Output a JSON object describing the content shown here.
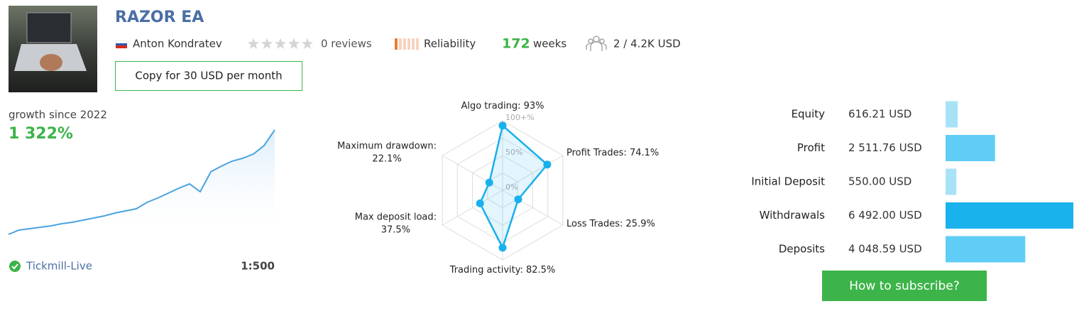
{
  "header": {
    "title": "RAZOR EA",
    "author": "Anton Kondratev",
    "reviews": "0 reviews",
    "reliability": "Reliability",
    "weeks": "172",
    "weeks_unit": "weeks",
    "subscribers": "2 / 4.2K USD",
    "copy_button": "Copy for 30 USD per month"
  },
  "growth": {
    "type": "line",
    "label": "growth since 2022",
    "total": "1 322%",
    "color": "#4aa3df",
    "values": [
      0,
      54,
      72,
      90,
      108,
      135,
      153,
      180,
      207,
      234,
      270,
      297,
      324,
      405,
      459,
      522,
      585,
      639,
      540,
      792,
      864,
      927,
      963,
      1017,
      1125,
      1322
    ],
    "broker": "Tickmill-Live",
    "leverage": "1:500"
  },
  "radar": {
    "type": "radar",
    "color": "#19b0ec",
    "rlim": [
      0,
      100
    ],
    "rticks": [
      {
        "value": 100,
        "label": "100+%"
      },
      {
        "value": 50,
        "label": "50%"
      },
      {
        "value": 0,
        "label": "0%"
      }
    ],
    "axes": [
      {
        "name": "Algo trading:",
        "value": 93,
        "value_label": "93%"
      },
      {
        "name": "Profit Trades:",
        "value": 74.1,
        "value_label": "74.1%"
      },
      {
        "name": "Loss Trades:",
        "value": 25.9,
        "value_label": "25.9%"
      },
      {
        "name": "Trading activity:",
        "value": 82.5,
        "value_label": "82.5%"
      },
      {
        "name": "Max deposit load:",
        "value": 37.5,
        "value_label": "37.5%"
      },
      {
        "name": "Maximum drawdown:",
        "value": 22.1,
        "value_label": "22.1%"
      }
    ]
  },
  "balance": {
    "type": "bar",
    "rows": [
      {
        "name": "Equity",
        "value": 616.21,
        "value_label": "616.21 USD",
        "color": "#a8e2f7"
      },
      {
        "name": "Profit",
        "value": 2511.76,
        "value_label": "2 511.76 USD",
        "color": "#5fcdf5"
      },
      {
        "name": "Initial Deposit",
        "value": 550.0,
        "value_label": "550.00 USD",
        "color": "#a8e2f7"
      },
      {
        "name": "Withdrawals",
        "value": 6492.0,
        "value_label": "6 492.00 USD",
        "color": "#1ab2ec"
      },
      {
        "name": "Deposits",
        "value": 4048.59,
        "value_label": "4 048.59 USD",
        "color": "#5fcdf5"
      }
    ],
    "button": "How to subscribe?"
  }
}
